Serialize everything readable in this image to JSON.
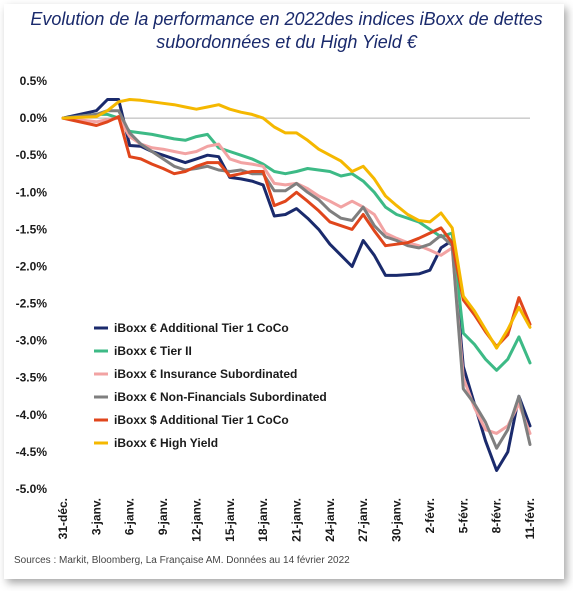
{
  "title_line1": "Evolution de la performance en 2022des indices iBoxx de dettes",
  "title_line2": "subordonnées et du High Yield €",
  "source": "Sources : Markit, Bloomberg, La Française AM. Données au 14 février 2022",
  "chart_data": {
    "type": "line",
    "x_tick_labels": [
      "31-déc.",
      "3-janv.",
      "6-janv.",
      "9-janv.",
      "12-janv.",
      "15-janv.",
      "18-janv.",
      "21-janv.",
      "24-janv.",
      "27-janv.",
      "30-janv.",
      "2-févr.",
      "5-févr.",
      "8-févr.",
      "11-févr."
    ],
    "x_tick_positions": [
      0,
      3,
      6,
      9,
      12,
      15,
      18,
      21,
      24,
      27,
      30,
      33,
      36,
      39,
      42
    ],
    "y_tick_labels": [
      "0.5%",
      "0.0%",
      "-0.5%",
      "-1.0%",
      "-1.5%",
      "-2.0%",
      "-2.5%",
      "-3.0%",
      "-3.5%",
      "-4.0%",
      "-4.5%",
      "-5.0%"
    ],
    "ylim": [
      -5.0,
      0.5
    ],
    "xlim": [
      0,
      42
    ],
    "ylabel": "",
    "xlabel": "",
    "legend_position": "left",
    "series": [
      {
        "name": "iBoxx € Additional Tier 1 CoCo",
        "color": "#1a2a6c",
        "x": [
          0,
          3,
          4,
          5,
          6,
          7,
          8,
          9,
          10,
          11,
          12,
          13,
          14,
          15,
          16,
          17,
          18,
          19,
          20,
          21,
          22,
          23,
          24,
          25,
          26,
          27,
          28,
          29,
          30,
          31,
          32,
          33,
          34,
          35,
          36,
          37,
          38,
          39,
          40,
          41,
          42
        ],
        "values": [
          0.0,
          0.1,
          0.25,
          0.25,
          -0.37,
          -0.38,
          -0.45,
          -0.5,
          -0.55,
          -0.6,
          -0.55,
          -0.5,
          -0.52,
          -0.8,
          -0.82,
          -0.85,
          -0.9,
          -1.32,
          -1.3,
          -1.22,
          -1.35,
          -1.5,
          -1.7,
          -1.85,
          -2.0,
          -1.65,
          -1.85,
          -2.12,
          -2.12,
          -2.11,
          -2.1,
          -2.05,
          -1.75,
          -1.65,
          -3.35,
          -3.85,
          -4.35,
          -4.75,
          -4.5,
          -3.75,
          -4.15
        ]
      },
      {
        "name": "iBoxx € Tier II",
        "color": "#3dba86",
        "x": [
          0,
          3,
          4,
          5,
          6,
          7,
          8,
          9,
          10,
          11,
          12,
          13,
          14,
          15,
          16,
          17,
          18,
          19,
          20,
          21,
          22,
          23,
          24,
          25,
          26,
          27,
          28,
          29,
          30,
          31,
          32,
          33,
          34,
          35,
          36,
          37,
          38,
          39,
          40,
          41,
          42
        ],
        "values": [
          0.0,
          0.05,
          0.05,
          0.0,
          -0.18,
          -0.2,
          -0.22,
          -0.25,
          -0.28,
          -0.3,
          -0.25,
          -0.22,
          -0.4,
          -0.45,
          -0.5,
          -0.55,
          -0.62,
          -0.72,
          -0.75,
          -0.72,
          -0.68,
          -0.7,
          -0.72,
          -0.78,
          -0.75,
          -0.85,
          -1.0,
          -1.2,
          -1.3,
          -1.35,
          -1.4,
          -1.5,
          -1.6,
          -1.55,
          -2.9,
          -3.05,
          -3.25,
          -3.4,
          -3.25,
          -2.95,
          -3.3
        ]
      },
      {
        "name": "iBoxx € Insurance Subordinated",
        "color": "#f2a3a3",
        "x": [
          0,
          3,
          4,
          5,
          6,
          7,
          8,
          9,
          10,
          11,
          12,
          13,
          14,
          15,
          16,
          17,
          18,
          19,
          20,
          21,
          22,
          23,
          24,
          25,
          26,
          27,
          28,
          29,
          30,
          31,
          32,
          33,
          34,
          35,
          36,
          37,
          38,
          39,
          40,
          41,
          42
        ],
        "values": [
          0.0,
          -0.05,
          -0.02,
          0.0,
          -0.25,
          -0.35,
          -0.4,
          -0.42,
          -0.45,
          -0.48,
          -0.45,
          -0.38,
          -0.35,
          -0.55,
          -0.6,
          -0.62,
          -0.65,
          -0.88,
          -0.9,
          -0.88,
          -0.95,
          -1.05,
          -1.12,
          -1.2,
          -1.12,
          -1.2,
          -1.3,
          -1.55,
          -1.62,
          -1.68,
          -1.72,
          -1.78,
          -1.85,
          -1.75,
          -3.5,
          -3.9,
          -4.2,
          -4.25,
          -4.15,
          -3.85,
          -4.25
        ]
      },
      {
        "name": "iBoxx € Non-Financials Subordinated",
        "color": "#7f7f7f",
        "x": [
          0,
          3,
          4,
          5,
          6,
          7,
          8,
          9,
          10,
          11,
          12,
          13,
          14,
          15,
          16,
          17,
          18,
          19,
          20,
          21,
          22,
          23,
          24,
          25,
          26,
          27,
          28,
          29,
          30,
          31,
          32,
          33,
          34,
          35,
          36,
          37,
          38,
          39,
          40,
          41,
          42
        ],
        "values": [
          0.0,
          0.05,
          0.1,
          0.1,
          -0.2,
          -0.35,
          -0.45,
          -0.55,
          -0.65,
          -0.7,
          -0.68,
          -0.65,
          -0.7,
          -0.72,
          -0.7,
          -0.75,
          -0.75,
          -0.98,
          -0.98,
          -0.88,
          -1.0,
          -1.1,
          -1.25,
          -1.35,
          -1.38,
          -1.2,
          -1.45,
          -1.6,
          -1.65,
          -1.72,
          -1.75,
          -1.7,
          -1.58,
          -1.72,
          -3.65,
          -3.85,
          -4.1,
          -4.45,
          -4.2,
          -3.75,
          -4.4
        ]
      },
      {
        "name": "iBoxx $ Additional Tier 1 CoCo",
        "color": "#e0461c",
        "x": [
          0,
          3,
          4,
          5,
          6,
          7,
          8,
          9,
          10,
          11,
          12,
          13,
          14,
          15,
          16,
          17,
          18,
          19,
          20,
          21,
          22,
          23,
          24,
          25,
          26,
          27,
          28,
          29,
          30,
          31,
          32,
          33,
          34,
          35,
          36,
          37,
          38,
          39,
          40,
          41,
          42
        ],
        "values": [
          0.0,
          -0.1,
          -0.05,
          0.02,
          -0.52,
          -0.55,
          -0.62,
          -0.68,
          -0.75,
          -0.72,
          -0.65,
          -0.6,
          -0.6,
          -0.78,
          -0.75,
          -0.72,
          -0.72,
          -1.18,
          -1.12,
          -1.0,
          -1.12,
          -1.25,
          -1.4,
          -1.45,
          -1.5,
          -1.3,
          -1.52,
          -1.72,
          -1.7,
          -1.68,
          -1.62,
          -1.55,
          -1.48,
          -1.68,
          -2.45,
          -2.65,
          -2.88,
          -3.08,
          -2.92,
          -2.42,
          -2.78
        ]
      },
      {
        "name": "iBoxx € High Yield",
        "color": "#f5b800",
        "x": [
          0,
          3,
          4,
          5,
          6,
          7,
          8,
          9,
          10,
          11,
          12,
          13,
          14,
          15,
          16,
          17,
          18,
          19,
          20,
          21,
          22,
          23,
          24,
          25,
          26,
          27,
          28,
          29,
          30,
          31,
          32,
          33,
          34,
          35,
          36,
          37,
          38,
          39,
          40,
          41,
          42
        ],
        "values": [
          0.0,
          0.02,
          0.1,
          0.22,
          0.25,
          0.24,
          0.22,
          0.2,
          0.18,
          0.15,
          0.12,
          0.15,
          0.18,
          0.12,
          0.08,
          0.05,
          0.0,
          -0.12,
          -0.2,
          -0.2,
          -0.3,
          -0.42,
          -0.5,
          -0.58,
          -0.72,
          -0.65,
          -0.82,
          -1.05,
          -1.18,
          -1.3,
          -1.38,
          -1.4,
          -1.28,
          -1.48,
          -2.4,
          -2.6,
          -2.85,
          -3.1,
          -2.85,
          -2.55,
          -2.82
        ]
      }
    ]
  }
}
